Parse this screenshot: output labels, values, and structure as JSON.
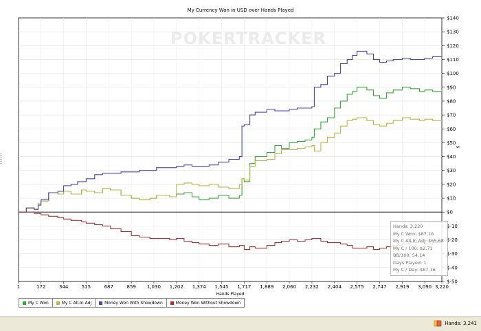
{
  "chart_data": {
    "type": "line",
    "title": "My Currency Won in USD over Hands Played",
    "xlabel": "Hands Played",
    "ylabel": "$",
    "xlim": [
      1,
      3220
    ],
    "ylim": [
      -50,
      140
    ],
    "x_ticks": [
      1,
      172,
      344,
      515,
      687,
      859,
      1030,
      1202,
      1374,
      1545,
      1717,
      1889,
      2060,
      2232,
      2404,
      2575,
      2747,
      2919,
      3090,
      3220
    ],
    "x_tick_labels": [
      "1",
      "172",
      "344",
      "515",
      "687",
      "859",
      "1,030",
      "1,202",
      "1,374",
      "1,545",
      "1,717",
      "1,889",
      "2,060",
      "2,232",
      "2,404",
      "2,575",
      "2,747",
      "2,919",
      "3,090",
      "3,220"
    ],
    "y_ticks": [
      -50,
      -40,
      -30,
      -20,
      -10,
      0,
      10,
      20,
      30,
      40,
      50,
      60,
      70,
      80,
      90,
      100,
      110,
      120,
      130,
      140
    ],
    "y_tick_labels": [
      "$-50",
      "$-40",
      "$-30",
      "$-20",
      "$-10",
      "$0",
      "$10",
      "$20",
      "$30",
      "$40",
      "$50",
      "$60",
      "$70",
      "$80",
      "$90",
      "$100",
      "$110",
      "$120",
      "$130",
      "$140"
    ],
    "grid": true,
    "legend_position": "bottom-left",
    "series": [
      {
        "name": "My C Won",
        "color": "#33aa33",
        "x": [
          1,
          60,
          120,
          150,
          172,
          230,
          300,
          344,
          400,
          480,
          515,
          580,
          640,
          700,
          780,
          859,
          920,
          1000,
          1050,
          1150,
          1202,
          1260,
          1320,
          1374,
          1450,
          1520,
          1600,
          1680,
          1700,
          1717,
          1760,
          1800,
          1889,
          1950,
          2000,
          2060,
          2120,
          2180,
          2232,
          2250,
          2300,
          2350,
          2404,
          2450,
          2500,
          2540,
          2575,
          2650,
          2700,
          2747,
          2800,
          2850,
          2919,
          2980,
          3050,
          3090,
          3150,
          3220
        ],
        "y": [
          0,
          3,
          2,
          6,
          8,
          14,
          13,
          15,
          13,
          16,
          15,
          14,
          17,
          16,
          12,
          10,
          9,
          10,
          12,
          11,
          13,
          14,
          11,
          9,
          10,
          12,
          10,
          12,
          24,
          22,
          35,
          40,
          43,
          48,
          46,
          50,
          51,
          52,
          54,
          60,
          65,
          68,
          75,
          80,
          85,
          87,
          90,
          88,
          84,
          82,
          86,
          88,
          90,
          89,
          87,
          88,
          87,
          88
        ]
      },
      {
        "name": "My C All-In Adj",
        "color": "#b8b840",
        "x": [
          1,
          60,
          120,
          150,
          172,
          230,
          300,
          344,
          400,
          480,
          515,
          580,
          640,
          700,
          780,
          859,
          920,
          1000,
          1050,
          1150,
          1202,
          1260,
          1320,
          1374,
          1450,
          1520,
          1600,
          1680,
          1700,
          1717,
          1760,
          1800,
          1889,
          1950,
          2000,
          2060,
          2120,
          2180,
          2232,
          2250,
          2300,
          2350,
          2404,
          2450,
          2500,
          2540,
          2575,
          2650,
          2700,
          2747,
          2800,
          2850,
          2919,
          2980,
          3050,
          3090,
          3150,
          3220
        ],
        "y": [
          0,
          3,
          2,
          6,
          8,
          14,
          13,
          15,
          13,
          16,
          15,
          14,
          17,
          16,
          12,
          10,
          9,
          10,
          12,
          11,
          20,
          21,
          20,
          19,
          20,
          18,
          17,
          20,
          24,
          23,
          33,
          37,
          38,
          42,
          45,
          45,
          46,
          47,
          48,
          44,
          50,
          54,
          57,
          62,
          66,
          67,
          68,
          66,
          63,
          62,
          64,
          66,
          68,
          67,
          66,
          67,
          66,
          66
        ]
      },
      {
        "name": "Money Won With Showdown",
        "color": "#4444bb",
        "x": [
          1,
          60,
          120,
          150,
          172,
          230,
          300,
          344,
          400,
          450,
          515,
          580,
          640,
          700,
          780,
          859,
          920,
          1000,
          1050,
          1150,
          1202,
          1260,
          1320,
          1374,
          1450,
          1520,
          1600,
          1680,
          1700,
          1717,
          1760,
          1800,
          1889,
          1950,
          2000,
          2060,
          2120,
          2180,
          2232,
          2250,
          2300,
          2350,
          2404,
          2450,
          2500,
          2540,
          2575,
          2650,
          2700,
          2747,
          2800,
          2850,
          2919,
          2980,
          3050,
          3090,
          3150,
          3220
        ],
        "y": [
          0,
          3,
          2,
          5,
          9,
          14,
          15,
          19,
          20,
          22,
          24,
          27,
          28,
          28,
          29,
          29,
          30,
          30,
          32,
          32,
          33,
          34,
          33,
          33,
          34,
          36,
          38,
          40,
          62,
          63,
          70,
          72,
          74,
          73,
          73,
          74,
          75,
          75,
          76,
          90,
          92,
          98,
          100,
          107,
          110,
          113,
          116,
          114,
          110,
          108,
          109,
          110,
          111,
          110,
          110,
          111,
          112,
          111
        ]
      },
      {
        "name": "Money Won Without Showdown",
        "color": "#b03030",
        "x": [
          1,
          60,
          120,
          172,
          230,
          300,
          344,
          400,
          480,
          515,
          580,
          640,
          700,
          780,
          859,
          920,
          1000,
          1050,
          1150,
          1202,
          1260,
          1320,
          1374,
          1450,
          1520,
          1600,
          1680,
          1717,
          1760,
          1800,
          1889,
          1950,
          2000,
          2060,
          2120,
          2180,
          2232,
          2300,
          2350,
          2404,
          2450,
          2500,
          2540,
          2575,
          2650,
          2700,
          2747,
          2800,
          2850,
          2919,
          2980,
          3050,
          3090,
          3150,
          3220
        ],
        "y": [
          0,
          0,
          -1,
          -2,
          -3,
          -4,
          -5,
          -6,
          -7,
          -8,
          -9,
          -10,
          -12,
          -14,
          -17,
          -18,
          -19,
          -19,
          -20,
          -19,
          -21,
          -22,
          -23,
          -24,
          -23,
          -25,
          -24,
          -27,
          -25,
          -26,
          -24,
          -22,
          -21,
          -20,
          -21,
          -20,
          -19,
          -21,
          -22,
          -22,
          -23,
          -24,
          -26,
          -26,
          -25,
          -27,
          -26,
          -25,
          -24,
          -23,
          -22,
          -22,
          -23,
          -22,
          -23
        ]
      }
    ]
  },
  "watermark": "POKERTRACKER",
  "tooltip": {
    "hands": "Hands: 3,220",
    "won": "My C Won: $87.16",
    "allin": "My C All-In Adj: $65.68",
    "per100": "My C / 100: $2.71",
    "bb100": "BB/100: 54.14",
    "days": "Days Played: 1",
    "perday": "My C / Day: $87.16"
  },
  "statusbar": {
    "hands": "Hands: 3,241"
  }
}
